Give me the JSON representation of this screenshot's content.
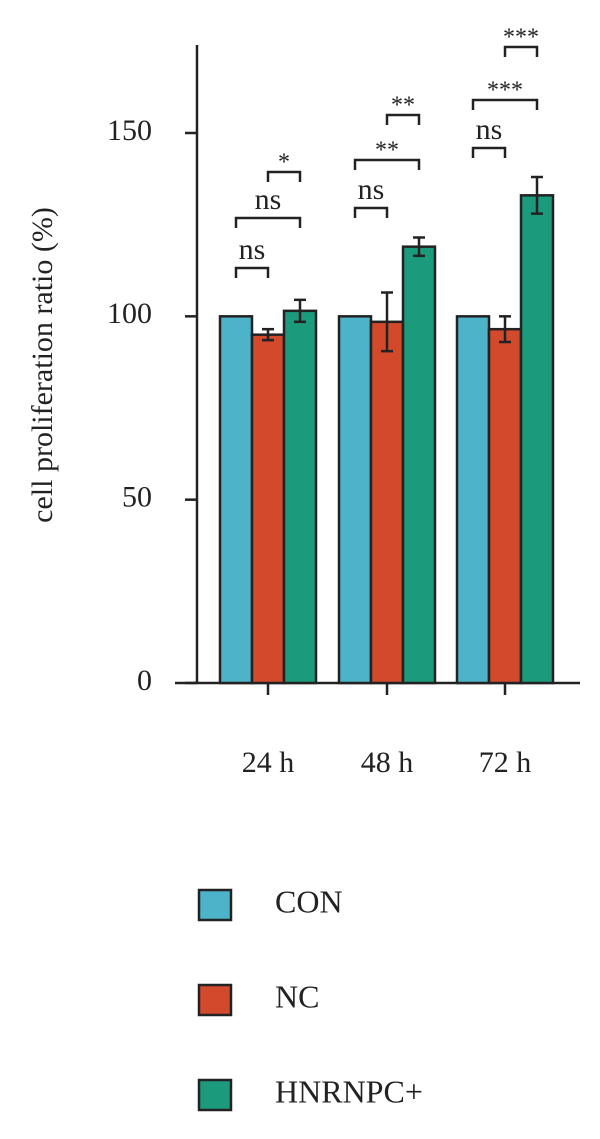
{
  "chart_data": {
    "type": "bar",
    "ylabel": "cell proliferation ratio (%)",
    "categories": [
      "24 h",
      "48 h",
      "72 h"
    ],
    "series": [
      {
        "name": "CON",
        "color": "#4db3c9",
        "values": [
          100,
          100,
          100
        ],
        "errors": [
          0,
          0,
          0
        ]
      },
      {
        "name": "NC",
        "color": "#d24a2b",
        "values": [
          95,
          98.5,
          96.5
        ],
        "errors": [
          1.5,
          8,
          3.5
        ]
      },
      {
        "name": "HNRNPC+",
        "color": "#1b9a7c",
        "values": [
          101.5,
          119,
          133
        ],
        "errors": [
          3,
          2.5,
          5
        ]
      }
    ],
    "ylim": [
      0,
      174
    ],
    "yticks": [
      0,
      50,
      100,
      150
    ],
    "annotations": [
      {
        "text": "ns",
        "group": 0,
        "from": 0,
        "to": 1
      },
      {
        "text": "ns",
        "group": 0,
        "from": 0,
        "to": 2
      },
      {
        "text": "*",
        "group": 0,
        "from": 1,
        "to": 2
      },
      {
        "text": "ns",
        "group": 1,
        "from": 0,
        "to": 1
      },
      {
        "text": "**",
        "group": 1,
        "from": 0,
        "to": 2
      },
      {
        "text": "**",
        "group": 1,
        "from": 1,
        "to": 2
      },
      {
        "text": "ns",
        "group": 2,
        "from": 0,
        "to": 1
      },
      {
        "text": "***",
        "group": 2,
        "from": 0,
        "to": 2
      },
      {
        "text": "***",
        "group": 2,
        "from": 1,
        "to": 2
      }
    ]
  }
}
